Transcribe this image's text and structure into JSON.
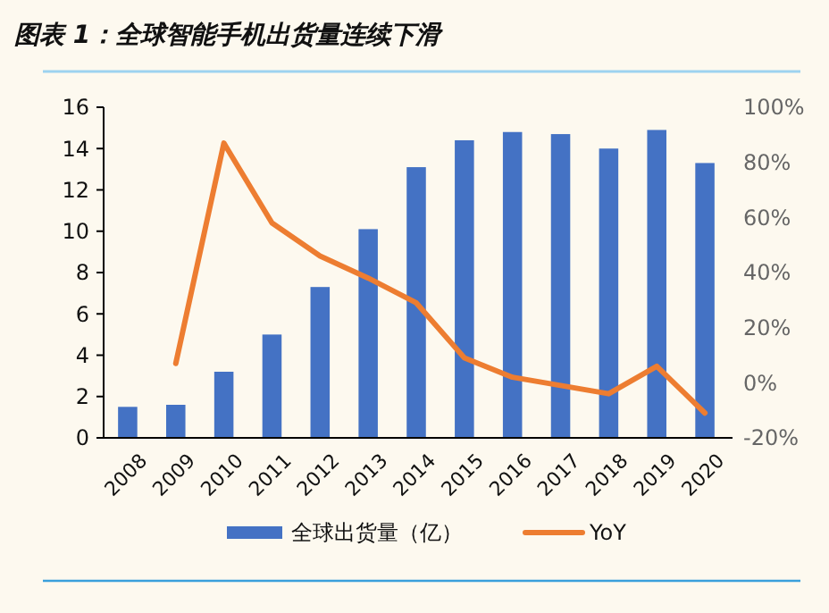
{
  "chart_data": {
    "type": "bar",
    "title": "图表 1：全球智能手机出货量连续下滑",
    "categories": [
      "2008",
      "2009",
      "2010",
      "2011",
      "2012",
      "2013",
      "2014",
      "2015",
      "2016",
      "2017",
      "2018",
      "2019",
      "2020"
    ],
    "series": [
      {
        "name": "全球出货量（亿）",
        "color": "#4472c4",
        "values": [
          1.5,
          1.6,
          3.2,
          5.0,
          7.3,
          10.1,
          13.1,
          14.4,
          14.8,
          14.7,
          14.0,
          14.9,
          13.3
        ]
      },
      {
        "name": "YoY",
        "type": "line",
        "axis": "y2",
        "color": "#ed7d31",
        "values": [
          null,
          7,
          87,
          58,
          46,
          38,
          29,
          9,
          2,
          -1,
          -4,
          6,
          -11
        ]
      }
    ],
    "ylim": [
      0,
      16
    ],
    "yticks": [
      0,
      2,
      4,
      6,
      8,
      10,
      12,
      14,
      16
    ],
    "y2lim": [
      -20,
      100
    ],
    "y2ticks": [
      {
        "value": -20,
        "label": "-20%"
      },
      {
        "value": 0,
        "label": "0%"
      },
      {
        "value": 20,
        "label": "20%"
      },
      {
        "value": 40,
        "label": "40%"
      },
      {
        "value": 60,
        "label": "60%"
      },
      {
        "value": 80,
        "label": "80%"
      },
      {
        "value": 100,
        "label": "100%"
      }
    ],
    "legend": "bottom",
    "grid": false
  }
}
